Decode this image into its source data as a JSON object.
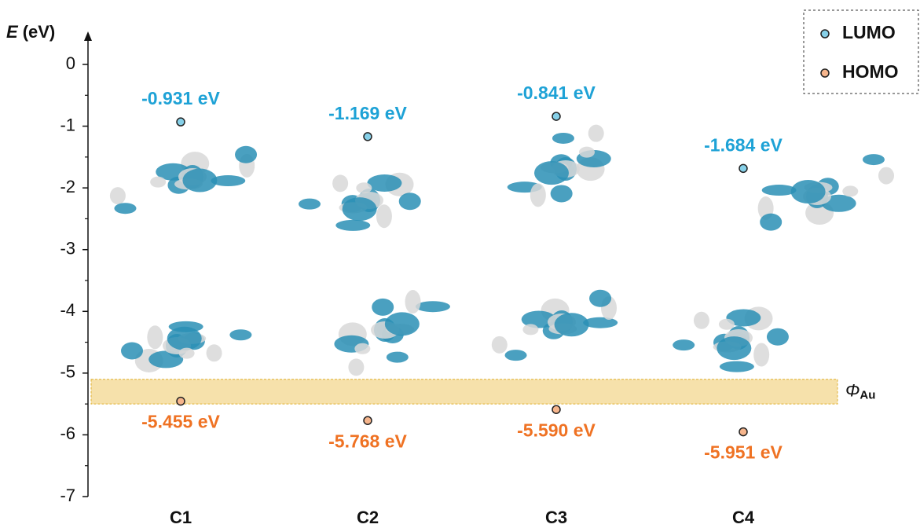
{
  "chart_data": {
    "type": "scatter",
    "ylabel_symbol": "E",
    "ylabel_unit": "(eV)",
    "categories": [
      "C1",
      "C2",
      "C3",
      "C4"
    ],
    "series": [
      {
        "name": "LUMO",
        "color": "#86d0e8",
        "label_color": "#1ea2d6",
        "values": [
          -0.931,
          -1.169,
          -0.841,
          -1.684
        ],
        "value_labels": [
          "-0.931 eV",
          "-1.169 eV",
          "-0.841 eV",
          "-1.684 eV"
        ]
      },
      {
        "name": "HOMO",
        "color": "#f6b58c",
        "label_color": "#ef7223",
        "values": [
          -5.455,
          -5.768,
          -5.59,
          -5.951
        ],
        "value_labels": [
          "-5.455 eV",
          "-5.768 eV",
          "-5.590 eV",
          "-5.951 eV"
        ]
      }
    ],
    "ylim": [
      -7,
      0.5
    ],
    "yticks": [
      -7,
      -6,
      -5,
      -4,
      -3,
      -2,
      -1,
      0
    ],
    "yminorticks": [
      -6.5,
      -5.5,
      -4.5,
      -3.5,
      -2.5,
      -1.5,
      -0.5
    ],
    "band": {
      "symbol": "Φ",
      "subscript": "Au",
      "range": [
        -5.1,
        -5.5
      ],
      "color": "#f5dc9c"
    },
    "legend": "top-right"
  }
}
